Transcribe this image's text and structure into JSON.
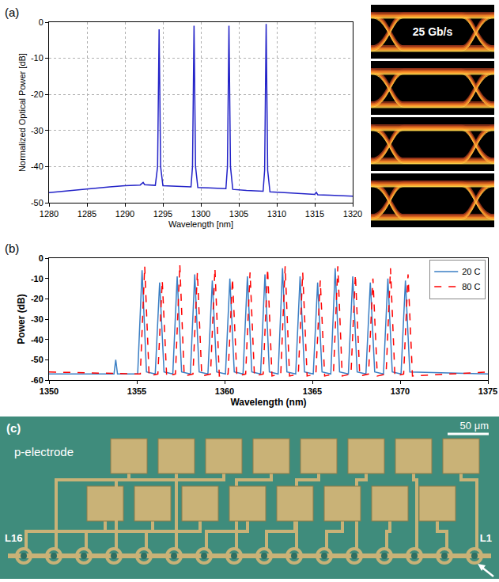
{
  "chart_data": [
    {
      "type": "line",
      "annotations": [
        "(a)"
      ],
      "xlabel": "Wavelength [nm]",
      "ylabel": "Normalized Optical Power [dB]",
      "color": "#2323c8",
      "x": [
        1280,
        1282,
        1284,
        1286,
        1288,
        1290,
        1292,
        1292.4,
        1292.6,
        1294.0,
        1294.3,
        1294.5,
        1294.7,
        1295.0,
        1297,
        1298.7,
        1298.9,
        1299.1,
        1299.3,
        1299.6,
        1301,
        1303.3,
        1303.5,
        1303.7,
        1303.9,
        1304.2,
        1306,
        1308.2,
        1308.4,
        1308.6,
        1308.8,
        1309.1,
        1311,
        1313,
        1315,
        1315.2,
        1315.4,
        1317,
        1320
      ],
      "values": [
        -47.2,
        -46.8,
        -46.3,
        -45.9,
        -45.6,
        -45.3,
        -45.1,
        -44.4,
        -45.0,
        -45.2,
        -40,
        -2,
        -40,
        -45.3,
        -45.5,
        -45.6,
        -40,
        -1,
        -40,
        -45.8,
        -45.9,
        -46.1,
        -40,
        -1,
        -40,
        -46.3,
        -46.6,
        -46.8,
        -41,
        -0.5,
        -41,
        -47.0,
        -47.2,
        -47.5,
        -47.7,
        -47.1,
        -47.8,
        -47.9,
        -48.2
      ],
      "xlim": [
        1280,
        1320
      ],
      "xticks": [
        1280,
        1285,
        1290,
        1295,
        1300,
        1305,
        1310,
        1315,
        1320
      ],
      "ylim": [
        -50,
        0
      ],
      "yticks": [
        -50,
        -40,
        -30,
        -20,
        -10,
        0
      ],
      "grid": true
    },
    {
      "type": "line",
      "annotations": [
        "(b)"
      ],
      "xlabel": "Wavelength (nm)",
      "ylabel": "Power (dB)",
      "legend": "upper right",
      "series": [
        {
          "name": "20 C",
          "color": "#3b7fc4",
          "line_style": "solid",
          "x": [
            1350,
            1353.7,
            1353.8,
            1353.9,
            1355.05,
            1355.3,
            1355.55,
            1356.05,
            1356.3,
            1356.55,
            1357.05,
            1357.3,
            1357.55,
            1358.05,
            1358.3,
            1358.55,
            1359.05,
            1359.3,
            1359.55,
            1360.05,
            1360.3,
            1360.55,
            1361.05,
            1361.3,
            1361.55,
            1362.05,
            1362.3,
            1362.55,
            1363.05,
            1363.3,
            1363.55,
            1364.05,
            1364.3,
            1364.55,
            1365.05,
            1365.3,
            1365.55,
            1366.05,
            1366.3,
            1366.55,
            1367.05,
            1367.3,
            1367.55,
            1368.05,
            1368.3,
            1368.55,
            1369.05,
            1369.3,
            1369.55,
            1370.05,
            1370.3,
            1370.55,
            1375
          ],
          "values": [
            -57,
            -57,
            -50,
            -57,
            -57,
            -6,
            -56,
            -57,
            -12,
            -56,
            -57,
            -9,
            -56,
            -57,
            -8,
            -56,
            -57,
            -11,
            -56,
            -57,
            -10,
            -56,
            -57,
            -9,
            -56,
            -57,
            -8,
            -56,
            -57,
            -5,
            -56,
            -57,
            -9,
            -56,
            -57,
            -12,
            -56,
            -57,
            -5,
            -56,
            -57,
            -9,
            -56,
            -57,
            -12,
            -56,
            -57,
            -10,
            -56,
            -57,
            -11,
            -56,
            -57
          ]
        },
        {
          "name": "80 C",
          "color": "#ff0000",
          "line_style": "dashed",
          "x": [
            1350,
            1355.2,
            1355.45,
            1355.7,
            1356.2,
            1356.45,
            1356.7,
            1357.2,
            1357.45,
            1357.7,
            1358.2,
            1358.45,
            1358.7,
            1359.2,
            1359.45,
            1359.7,
            1360.2,
            1360.45,
            1360.7,
            1361.2,
            1361.45,
            1361.7,
            1362.2,
            1362.45,
            1362.7,
            1363.2,
            1363.45,
            1363.7,
            1364.2,
            1364.45,
            1364.7,
            1365.2,
            1365.45,
            1365.7,
            1366.2,
            1366.45,
            1366.7,
            1367.2,
            1367.45,
            1367.7,
            1368.2,
            1368.45,
            1368.7,
            1369.2,
            1369.45,
            1369.7,
            1370.2,
            1370.45,
            1370.7,
            1375
          ],
          "values": [
            -56,
            -57,
            -4,
            -58,
            -57,
            -11,
            -58,
            -57,
            -3,
            -58,
            -57,
            -7,
            -58,
            -57,
            -5,
            -58,
            -57,
            -10,
            -58,
            -57,
            -7,
            -58,
            -57,
            -5,
            -58,
            -57,
            -4,
            -58,
            -57,
            -7,
            -58,
            -57,
            -11,
            -58,
            -57,
            -4,
            -58,
            -57,
            -8,
            -58,
            -57,
            -10,
            -58,
            -57,
            -5,
            -58,
            -57,
            -8,
            -58,
            -56
          ]
        }
      ],
      "xlim": [
        1350,
        1375
      ],
      "xticks": [
        1350,
        1355,
        1360,
        1365,
        1370,
        1375
      ],
      "ylim": [
        -60,
        0
      ],
      "yticks": [
        -60,
        -50,
        -40,
        -30,
        -20,
        -10,
        0
      ],
      "grid": false
    }
  ],
  "eye_diagrams": {
    "rate_label": "25 Gb/s",
    "count": 4
  },
  "micrograph": {
    "label": "(c)",
    "electrode_label": "p-electrode",
    "scale_bar": "50 μm",
    "laser_labels": [
      "L16",
      "L1"
    ],
    "lasers": 16
  }
}
